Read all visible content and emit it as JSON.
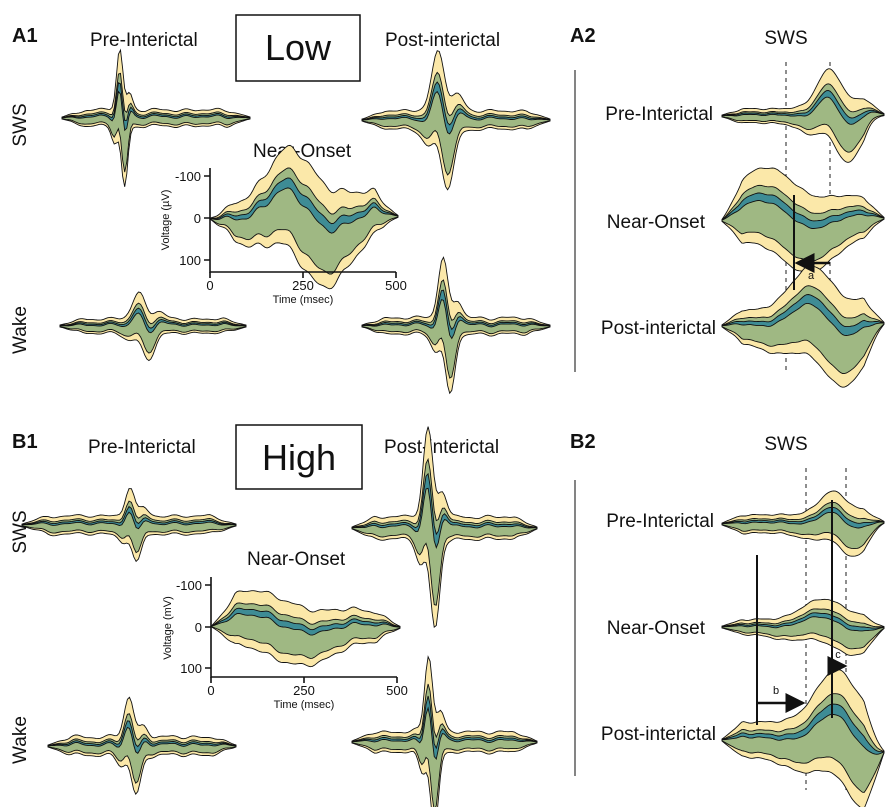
{
  "colors": {
    "yellow": "#fbe8a9",
    "green": "#9fb883",
    "teal": "#3e8c95",
    "outline": "#111111"
  },
  "panels": {
    "a1": {
      "id": "A1",
      "condition": "Low",
      "pre": "Pre-Interictal",
      "post": "Post-interictal",
      "near": "Near-Onset",
      "row_sws": "SWS",
      "row_wake": "Wake",
      "axis": {
        "ylabel": "Voltage (µV)",
        "xlabel": "Time (msec)",
        "yticks": [
          "-100",
          "0",
          "100"
        ],
        "xticks": [
          "0",
          "250",
          "500"
        ]
      }
    },
    "a2": {
      "id": "A2",
      "title": "SWS",
      "pre": "Pre-Interictal",
      "near": "Near-Onset",
      "post": "Post-interictal",
      "arrow": "a"
    },
    "b1": {
      "id": "B1",
      "condition": "High",
      "pre": "Pre-Interictal",
      "post": "Post-interictal",
      "near": "Near-Onset",
      "row_sws": "SWS",
      "row_wake": "Wake",
      "axis": {
        "ylabel": "Voltage (mV)",
        "xlabel": "Time (msec)",
        "yticks": [
          "-100",
          "0",
          "100"
        ],
        "xticks": [
          "0",
          "250",
          "500"
        ]
      }
    },
    "b2": {
      "id": "B2",
      "title": "SWS",
      "pre": "Pre-Interictal",
      "near": "Near-Onset",
      "post": "Post-interictal",
      "arrow_b": "b",
      "arrow_c": "c"
    }
  }
}
